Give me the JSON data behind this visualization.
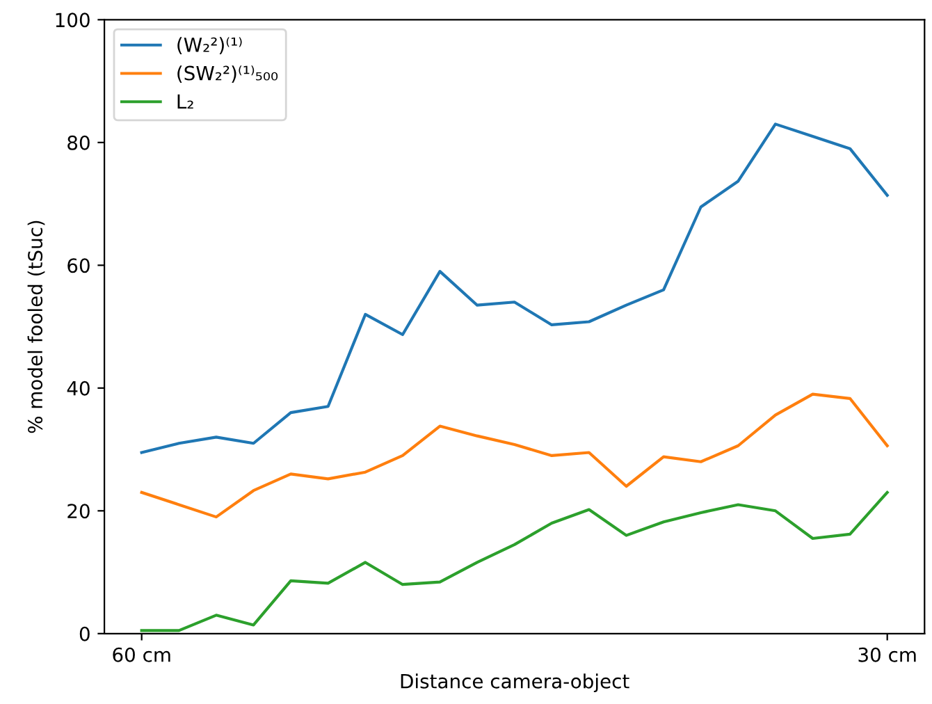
{
  "chart_data": {
    "type": "line",
    "xlabel": "Distance camera-object",
    "ylabel": "% model fooled (tSuc)",
    "categories": [
      "60 cm",
      null,
      null,
      null,
      null,
      null,
      null,
      null,
      null,
      null,
      null,
      null,
      null,
      null,
      null,
      null,
      null,
      null,
      null,
      null,
      "30 cm"
    ],
    "series": [
      {
        "name": "(W₂²)⁽¹⁾",
        "color": "#1f77b4",
        "values": [
          29.5,
          31,
          32,
          31,
          36,
          37,
          52,
          48.7,
          59,
          53.5,
          54,
          50.3,
          50.8,
          53.5,
          56,
          69.5,
          73.7,
          83,
          81,
          79,
          71.4
        ]
      },
      {
        "name": "(SW₂²)⁽¹⁾₅₀₀",
        "color": "#ff7f0e",
        "values": [
          23,
          21,
          19,
          23.3,
          26,
          25.2,
          26.3,
          29,
          33.8,
          32.2,
          30.8,
          29,
          29.5,
          24,
          28.8,
          28,
          30.6,
          35.6,
          39,
          38.3,
          30.6
        ]
      },
      {
        "name": "L₂",
        "color": "#2ca02c",
        "values": [
          0.5,
          0.5,
          3,
          1.4,
          8.6,
          8.2,
          11.6,
          8,
          8.4,
          11.6,
          14.5,
          18,
          20.2,
          16,
          18.2,
          19.7,
          21,
          20,
          15.5,
          16.2,
          23
        ]
      }
    ],
    "ylim": [
      0,
      100
    ],
    "yticks": [
      0,
      20,
      40,
      60,
      80,
      100
    ],
    "legend": "top left",
    "grid": false
  }
}
